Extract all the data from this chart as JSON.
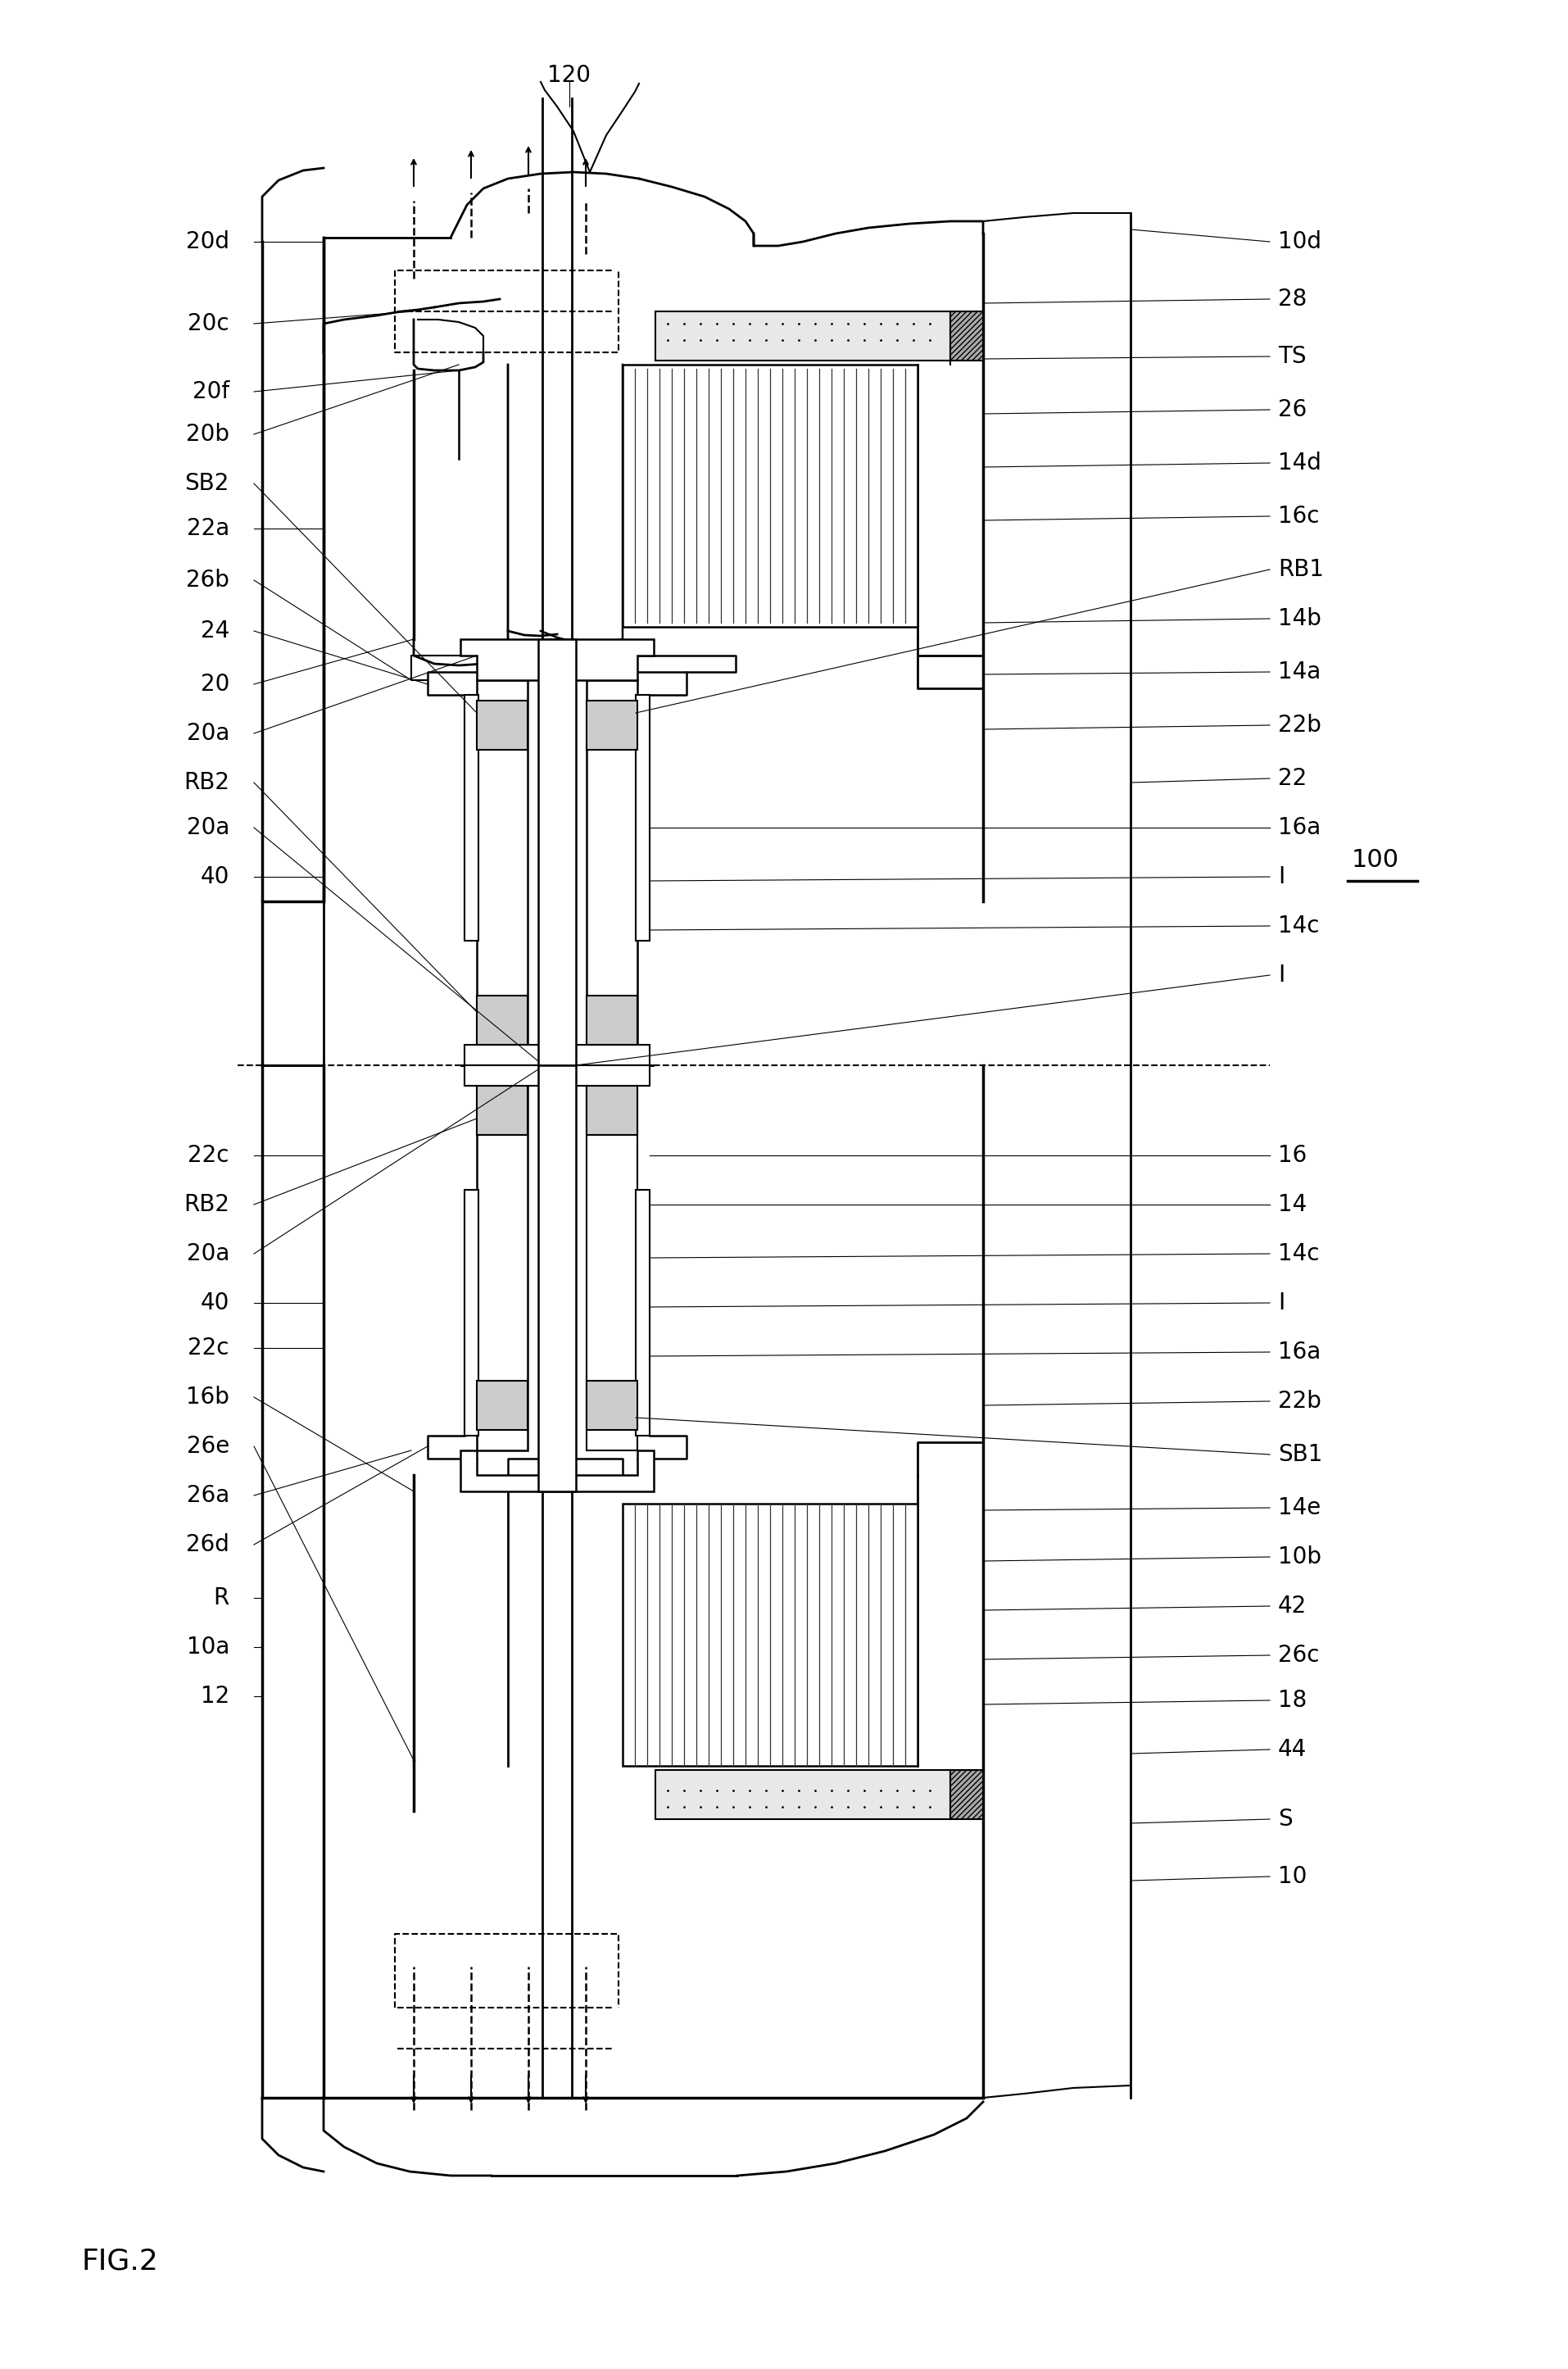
{
  "background_color": "#ffffff",
  "fig_label": "FIG.2",
  "ref_100": "100",
  "label_120": "120",
  "labels_left_upper": [
    [
      "20d",
      310
    ],
    [
      "20c",
      395
    ],
    [
      "20f",
      480
    ],
    [
      "20b",
      545
    ],
    [
      "SB2",
      610
    ],
    [
      "22a",
      670
    ],
    [
      "26b",
      730
    ],
    [
      "24",
      790
    ],
    [
      "20",
      855
    ],
    [
      "20a",
      920
    ],
    [
      "RB2",
      985
    ],
    [
      "20a",
      1040
    ],
    [
      "40",
      1095
    ],
    [
      "RB2",
      1150
    ]
  ],
  "labels_right_upper": [
    [
      "10d",
      300
    ],
    [
      "28",
      370
    ],
    [
      "TS",
      435
    ],
    [
      "26",
      505
    ],
    [
      "14d",
      570
    ],
    [
      "16c",
      635
    ],
    [
      "RB1",
      700
    ],
    [
      "14b",
      760
    ],
    [
      "14a",
      825
    ],
    [
      "22b",
      890
    ],
    [
      "22",
      955
    ],
    [
      "16a",
      1015
    ],
    [
      "I",
      1075
    ],
    [
      "14c",
      1135
    ],
    [
      "I",
      1195
    ]
  ],
  "labels_left_lower": [
    [
      "22c",
      1430
    ],
    [
      "RB2",
      1490
    ],
    [
      "20a",
      1545
    ],
    [
      "40",
      1610
    ],
    [
      "22c",
      1665
    ],
    [
      "16b",
      1720
    ],
    [
      "26e",
      1775
    ],
    [
      "26a",
      1840
    ],
    [
      "26d",
      1895
    ],
    [
      "R",
      1960
    ],
    [
      "10a",
      2020
    ],
    [
      "12",
      2080
    ]
  ],
  "labels_right_lower": [
    [
      "16",
      1430
    ],
    [
      "14",
      1490
    ],
    [
      "14c",
      1545
    ],
    [
      "I",
      1605
    ],
    [
      "16a",
      1665
    ],
    [
      "22b",
      1720
    ],
    [
      "SB1",
      1780
    ],
    [
      "14e",
      1840
    ],
    [
      "10b",
      1895
    ],
    [
      "42",
      1955
    ],
    [
      "26c",
      2015
    ],
    [
      "18",
      2075
    ],
    [
      "44",
      2135
    ],
    [
      "S",
      2220
    ],
    [
      "10",
      2290
    ]
  ]
}
